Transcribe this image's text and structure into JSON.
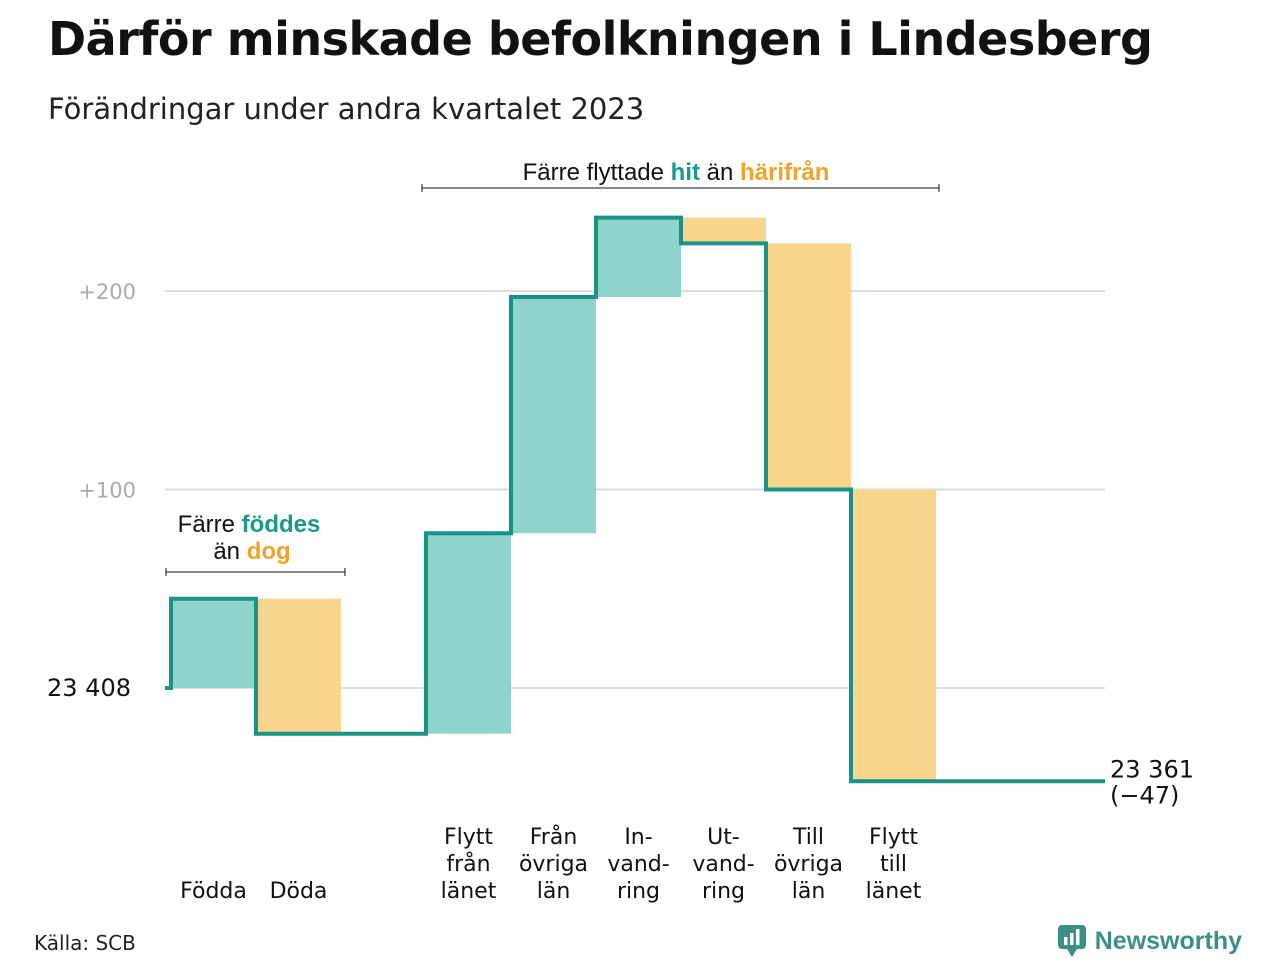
{
  "title": "Därför minskade befolkningen i Lindesberg",
  "subtitle": "Förändringar under andra kvartalet 2023",
  "source": "Källa: SCB",
  "brand": "Newsworthy",
  "colors": {
    "gain": "#8dd5cb",
    "loss": "#fad58d",
    "line": "#1a9385",
    "grid": "#dddddd",
    "accent_teal": "#1a9a8b",
    "accent_orange": "#f0a22a"
  },
  "icons": {
    "brand_logo": "chart-bubble-icon"
  },
  "annotations": {
    "left": {
      "part1": "Färre ",
      "hl1": "föddes",
      "part2": "än ",
      "hl2": "dog"
    },
    "top": {
      "part1": "Färre flyttade ",
      "hl1": "hit",
      "part2": " än ",
      "hl2": "härifrån"
    }
  },
  "chart_data": {
    "type": "waterfall",
    "base": 23408,
    "base_label": "23  408",
    "end_value": 23361,
    "end_label": [
      "23 361",
      "(−47)"
    ],
    "change": -47,
    "yticks": [
      200,
      100
    ],
    "ytick_labels": [
      "+200",
      "+100"
    ],
    "ylim": [
      -47,
      236
    ],
    "grid": true,
    "steps": [
      {
        "category": [
          "Födda"
        ],
        "value": 45
      },
      {
        "category": [
          "Döda"
        ],
        "value": -68
      },
      {
        "category": [
          "Flytt",
          "från",
          "länet"
        ],
        "value": 101
      },
      {
        "category": [
          "Från",
          "övriga",
          "län"
        ],
        "value": 119
      },
      {
        "category": [
          "In-",
          "vand-",
          "ring"
        ],
        "value": 40
      },
      {
        "category": [
          "Ut-",
          "vand-",
          "ring"
        ],
        "value": -13
      },
      {
        "category": [
          "Till",
          "övriga",
          "län"
        ],
        "value": -124
      },
      {
        "category": [
          "Flytt",
          "till",
          "länet"
        ],
        "value": -147
      }
    ]
  }
}
